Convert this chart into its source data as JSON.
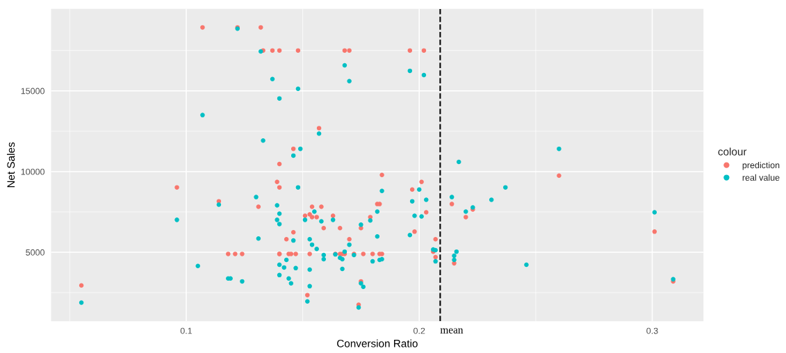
{
  "chart_data": {
    "type": "scatter",
    "xlabel": "Conversion Ratio",
    "ylabel": "Net Sales",
    "legend_title": "colour",
    "legend": "right",
    "grid": true,
    "marker": "circle",
    "xlim": [
      0.042,
      0.322
    ],
    "ylim": [
      730,
      20080
    ],
    "xticks": [
      0.1,
      0.2,
      0.3
    ],
    "yticks": [
      5000,
      10000,
      15000
    ],
    "ref_lines": [
      {
        "axis": "x",
        "value": 0.209,
        "label": "mean",
        "color": "#000000",
        "line_style": "dashed"
      }
    ],
    "series": [
      {
        "name": "prediction",
        "color": "#f8766d",
        "x": [
          0.055,
          0.096,
          0.105,
          0.107,
          0.114,
          0.118,
          0.121,
          0.122,
          0.124,
          0.131,
          0.132,
          0.133,
          0.137,
          0.139,
          0.14,
          0.14,
          0.14,
          0.14,
          0.14,
          0.143,
          0.144,
          0.146,
          0.145,
          0.146,
          0.147,
          0.148,
          0.149,
          0.151,
          0.152,
          0.153,
          0.153,
          0.154,
          0.154,
          0.156,
          0.157,
          0.158,
          0.159,
          0.163,
          0.164,
          0.166,
          0.166,
          0.167,
          0.168,
          0.168,
          0.17,
          0.17,
          0.172,
          0.174,
          0.175,
          0.175,
          0.176,
          0.179,
          0.18,
          0.182,
          0.183,
          0.183,
          0.184,
          0.184,
          0.196,
          0.197,
          0.198,
          0.201,
          0.202,
          0.203,
          0.206,
          0.207,
          0.207,
          0.214,
          0.215,
          0.217,
          0.22,
          0.223,
          0.231,
          0.237,
          0.26,
          0.301,
          0.309
        ],
        "values": [
          2950,
          9020,
          null,
          18930,
          8160,
          4900,
          4900,
          18930,
          4900,
          7820,
          18930,
          17500,
          17500,
          9360,
          9020,
          10470,
          17500,
          4900,
          4900,
          5810,
          4900,
          6240,
          4900,
          11410,
          4900,
          17500,
          null,
          7260,
          2350,
          7350,
          4900,
          7820,
          7180,
          7180,
          12690,
          7820,
          6500,
          7260,
          4900,
          6500,
          4900,
          4900,
          4900,
          17500,
          17500,
          5810,
          4900,
          1750,
          6500,
          3200,
          4900,
          7180,
          4900,
          7990,
          7990,
          4900,
          4900,
          9790,
          17500,
          8890,
          6280,
          9360,
          17500,
          7480,
          5040,
          4700,
          5810,
          7990,
          4320,
          null,
          7180,
          7650,
          null,
          null,
          9750,
          6280,
          3200
        ]
      },
      {
        "name": "real value",
        "color": "#00bfc4",
        "x": [
          0.055,
          0.096,
          0.105,
          0.107,
          0.114,
          0.118,
          0.119,
          0.122,
          0.124,
          0.13,
          0.131,
          0.132,
          0.133,
          0.137,
          0.139,
          0.139,
          0.14,
          0.14,
          0.14,
          0.14,
          0.14,
          0.142,
          0.143,
          0.144,
          0.145,
          0.146,
          0.146,
          0.147,
          0.148,
          0.148,
          0.149,
          0.151,
          0.152,
          0.153,
          0.153,
          0.153,
          0.154,
          0.155,
          0.156,
          0.157,
          0.158,
          0.159,
          0.159,
          0.163,
          0.164,
          0.166,
          0.167,
          0.167,
          0.168,
          0.168,
          0.17,
          0.17,
          0.172,
          0.174,
          0.175,
          0.175,
          0.176,
          0.179,
          0.18,
          0.182,
          0.182,
          0.183,
          0.184,
          0.184,
          0.196,
          0.196,
          0.197,
          0.198,
          0.2,
          0.201,
          0.202,
          0.203,
          0.206,
          0.207,
          0.207,
          0.214,
          0.215,
          0.215,
          0.216,
          0.217,
          0.22,
          0.223,
          0.231,
          0.237,
          0.246,
          0.26,
          0.301,
          0.309
        ],
        "values": [
          1880,
          7010,
          4150,
          13500,
          7950,
          3380,
          3380,
          18850,
          3200,
          8420,
          5850,
          17440,
          11920,
          15730,
          7010,
          7910,
          14530,
          6750,
          7390,
          4230,
          3590,
          4060,
          4530,
          3380,
          3080,
          5730,
          10990,
          4020,
          15130,
          9020,
          11410,
          7010,
          1960,
          2900,
          5810,
          3930,
          5470,
          7520,
          5210,
          12350,
          6920,
          4830,
          4570,
          7010,
          4870,
          4660,
          4570,
          3970,
          5040,
          16580,
          15600,
          5470,
          4830,
          1580,
          6710,
          3080,
          2860,
          6970,
          4440,
          5980,
          7520,
          4530,
          8800,
          4570,
          6070,
          16240,
          8160,
          7260,
          8890,
          7220,
          15980,
          8250,
          5170,
          4440,
          5130,
          8420,
          4790,
          4530,
          5040,
          10600,
          7520,
          7780,
          8250,
          9020,
          4230,
          11410,
          7480,
          3330
        ]
      }
    ]
  }
}
